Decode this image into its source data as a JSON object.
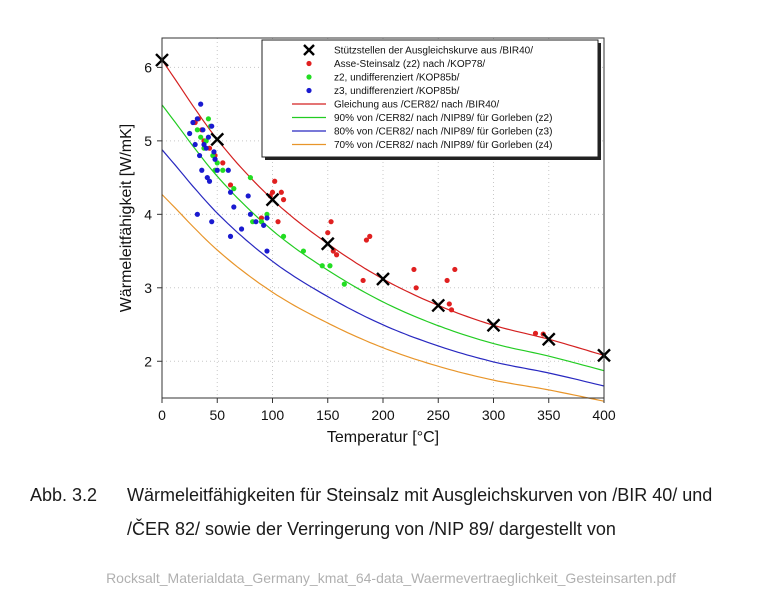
{
  "chart_data": {
    "type": "scatter",
    "xlabel": "Temperatur [°C]",
    "ylabel": "Wärmeleitfähigkeit [W/mK]",
    "xlim": [
      0,
      400
    ],
    "ylim": [
      1.5,
      6.4
    ],
    "x_ticks": [
      "0",
      "50",
      "100",
      "150",
      "200",
      "250",
      "300",
      "350",
      "400"
    ],
    "y_ticks": [
      "2",
      "3",
      "4",
      "5",
      "6"
    ],
    "grid": true,
    "legend_position": "top-right",
    "support_points": {
      "name": "Stützstellen der Ausgleichskurve aus /BIR40/",
      "color": "#000000",
      "x": [
        0,
        50,
        100,
        150,
        200,
        250,
        300,
        350,
        400
      ],
      "y": [
        6.1,
        5.02,
        4.2,
        3.6,
        3.12,
        2.76,
        2.49,
        2.3,
        2.08
      ]
    },
    "scatter_series": [
      {
        "name": "Asse-Steinsalz (z2) nach /KOP78/",
        "color": "#e02020",
        "x": [
          30,
          33,
          36,
          38,
          43,
          48,
          55,
          62,
          90,
          98,
          100,
          102,
          105,
          108,
          110,
          150,
          153,
          155,
          158,
          182,
          185,
          188,
          228,
          230,
          258,
          260,
          262,
          265,
          338,
          345
        ],
        "y": [
          5.25,
          5.3,
          5.15,
          5.0,
          4.9,
          4.8,
          4.7,
          4.4,
          3.95,
          4.25,
          4.3,
          4.45,
          3.9,
          4.3,
          4.2,
          3.75,
          3.9,
          3.5,
          3.45,
          3.1,
          3.65,
          3.7,
          3.25,
          3.0,
          3.1,
          2.78,
          2.7,
          3.25,
          2.38,
          2.37
        ]
      },
      {
        "name": "z2, undifferenziert /KOP85b/",
        "color": "#22dd22",
        "x": [
          32,
          35,
          38,
          40,
          42,
          44,
          46,
          48,
          50,
          55,
          65,
          80,
          82,
          90,
          95,
          110,
          128,
          145,
          152,
          165
        ],
        "y": [
          5.15,
          5.05,
          4.9,
          5.0,
          5.3,
          5.2,
          4.8,
          4.6,
          4.7,
          4.6,
          4.35,
          4.5,
          3.9,
          3.9,
          4.0,
          3.7,
          3.5,
          3.3,
          3.3,
          3.05
        ]
      },
      {
        "name": "z3, undifferenziert /KOP85b/",
        "color": "#1a1ad0",
        "x": [
          25,
          28,
          30,
          32,
          34,
          35,
          36,
          37,
          38,
          40,
          41,
          42,
          43,
          45,
          47,
          48,
          50,
          60,
          62,
          65,
          72,
          78,
          80,
          85,
          92,
          95,
          32,
          45,
          62,
          95
        ],
        "y": [
          5.1,
          5.25,
          4.95,
          5.3,
          4.8,
          5.5,
          4.6,
          5.15,
          4.95,
          4.9,
          4.5,
          5.05,
          4.45,
          5.2,
          4.85,
          4.75,
          4.6,
          4.6,
          4.3,
          4.1,
          3.8,
          4.25,
          4.0,
          3.9,
          3.85,
          3.5,
          4.0,
          3.9,
          3.7,
          3.95
        ]
      }
    ],
    "curves": [
      {
        "name": "Gleichung aus /CER82/ nach /BIR40/",
        "color": "#d42020",
        "factor": 1.0
      },
      {
        "name": "90% von /CER82/ nach /NIP89/ für Gorleben (z2)",
        "color": "#22cc22",
        "factor": 0.9
      },
      {
        "name": "80% von /CER82/ nach /NIP89/ für Gorleben (z3)",
        "color": "#2828c0",
        "factor": 0.8
      },
      {
        "name": "70% von /CER82/ nach /NIP89/ für Gorleben (z4)",
        "color": "#e8952a",
        "factor": 0.7
      }
    ]
  },
  "caption": {
    "number": "Abb. 3.2",
    "line1": "Wärmeleitfähigkeiten für Steinsalz mit Ausgleichskurven von /BIR 40/ und",
    "line2": "/ČER 82/ sowie der Verringerung von /NIP 89/ dargestellt von"
  },
  "source_file": "Rocksalt_Materialdata_Germany_kmat_64-data_Waermevertraeglichkeit_Gesteinsarten.pdf"
}
